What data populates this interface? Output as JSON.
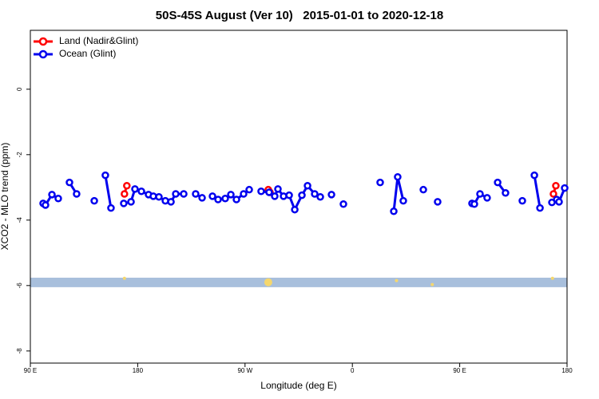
{
  "chart_data": {
    "type": "line",
    "title": "50S-45S August (Ver 10)   2015-01-01 to 2020-12-18",
    "xlabel": "Longitude (deg E)",
    "ylabel": "XCO2 - MLO trend (ppm)",
    "xlim": [
      90,
      540
    ],
    "ylim": [
      -8.37,
      1.8
    ],
    "xticks": [
      {
        "value": 90,
        "label": "90 E"
      },
      180,
      {
        "value": 270,
        "label": "90 W"
      },
      {
        "value": 360,
        "label": "0"
      },
      {
        "value": 450,
        "label": "90 E"
      },
      {
        "value": 540,
        "label": "180"
      }
    ],
    "yticks": [
      0,
      -2,
      -4,
      -6,
      -8
    ],
    "legend": "top-left",
    "band": {
      "ymin": -6.05,
      "ymax": -5.76,
      "color": "#a8bfdc"
    },
    "highlights": {
      "color": "#f5d76e",
      "x": [
        168.9,
        289.5,
        397,
        427,
        527.8
      ],
      "y": [
        -5.78,
        -5.9,
        -5.85,
        -5.97,
        -5.78
      ]
    },
    "series": [
      {
        "name": "Land (Nadir&Glint)",
        "color": "#ff0000",
        "x": [
          168.9,
          170.9,
          null,
          289.5,
          290.9,
          null,
          528.6,
          530.6
        ],
        "values": [
          -3.2,
          -2.95,
          null,
          -3.07,
          -3.15,
          null,
          -3.2,
          -2.95
        ]
      },
      {
        "name": "Ocean (Glint)",
        "color": "#0000ee",
        "x": [
          100.7,
          102.7,
          108.1,
          113.4,
          null,
          122.8,
          128.8,
          null,
          143.6,
          null,
          152.9,
          157.6,
          null,
          168.3,
          174.4,
          177.7,
          183.1,
          189.1,
          193.1,
          197.8,
          203.2,
          207.9,
          211.9,
          218.6,
          null,
          228.6,
          234.0,
          null,
          242.7,
          247.4,
          253.4,
          258.1,
          262.8,
          268.8,
          273.5,
          null,
          283.5,
          290.2,
          294.9,
          297.6,
          302.3,
          307.0,
          311.7,
          317.7,
          322.4,
          328.4,
          333.1,
          null,
          342.5,
          null,
          352.5,
          null,
          383.3,
          null,
          394.7,
          398.0,
          402.7,
          null,
          419.5,
          null,
          431.5,
          null,
          460.3,
          462.3,
          467.0,
          473.0,
          null,
          481.8,
          488.4,
          null,
          502.5,
          null,
          512.6,
          517.3,
          null,
          527.3,
          531.3,
          533.3,
          538.0
        ],
        "values": [
          -3.49,
          -3.54,
          -3.22,
          -3.34,
          null,
          -2.85,
          -3.2,
          null,
          -3.41,
          null,
          -2.63,
          -3.63,
          null,
          -3.49,
          -3.44,
          -3.05,
          -3.12,
          -3.22,
          -3.27,
          -3.29,
          -3.41,
          -3.44,
          -3.2,
          -3.2,
          null,
          -3.2,
          -3.32,
          null,
          -3.27,
          -3.37,
          -3.34,
          -3.22,
          -3.37,
          -3.2,
          -3.07,
          null,
          -3.12,
          -3.15,
          -3.27,
          -3.05,
          -3.27,
          -3.24,
          -3.68,
          -3.24,
          -2.95,
          -3.2,
          -3.29,
          null,
          -3.22,
          null,
          -3.51,
          null,
          -2.85,
          null,
          -3.73,
          -2.68,
          -3.41,
          null,
          -3.07,
          null,
          -3.44,
          null,
          -3.49,
          -3.51,
          -3.2,
          -3.32,
          null,
          -2.85,
          -3.17,
          null,
          -3.41,
          null,
          -2.63,
          -3.63,
          null,
          -3.46,
          -3.37,
          -3.44,
          -3.02
        ]
      }
    ]
  }
}
